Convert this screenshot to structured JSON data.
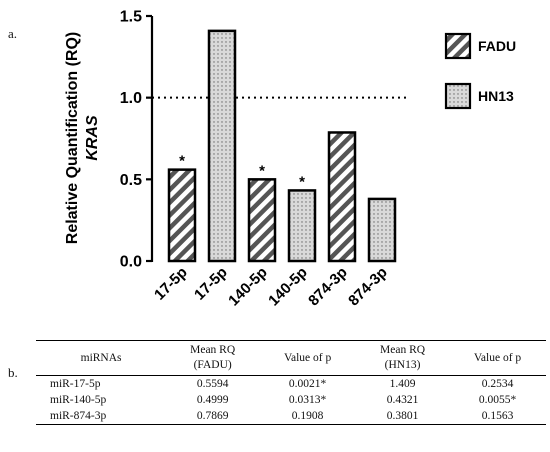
{
  "figure": {
    "panel_a_label": "a.",
    "panel_b_label": "b."
  },
  "chart_data": {
    "type": "bar",
    "ylabel_line1": "Relative Quantification (RQ)",
    "ylabel_line2": "KRAS",
    "ylim": [
      0,
      1.5
    ],
    "yticks": [
      "0.0",
      "0.5",
      "1.0",
      "1.5"
    ],
    "reference_line": 1.0,
    "categories": [
      "17-5p",
      "17-5p",
      "140-5p",
      "140-5p",
      "874-3p",
      "874-3p"
    ],
    "bars": [
      {
        "series": "FADU",
        "value": 0.5594,
        "significant": true
      },
      {
        "series": "HN13",
        "value": 1.409,
        "significant": false
      },
      {
        "series": "FADU",
        "value": 0.4999,
        "significant": true
      },
      {
        "series": "HN13",
        "value": 0.4321,
        "significant": true
      },
      {
        "series": "FADU",
        "value": 0.7869,
        "significant": false
      },
      {
        "series": "HN13",
        "value": 0.3801,
        "significant": false
      }
    ],
    "significance_marker": "*",
    "legend": [
      {
        "name": "FADU",
        "pattern": "diagonal-stripes",
        "color": "#555555"
      },
      {
        "name": "HN13",
        "pattern": "dots",
        "color": "#d9d9d9"
      }
    ],
    "legend_position": "right",
    "grid": false
  },
  "table": {
    "headers": [
      {
        "line1": "miRNAs",
        "line2": ""
      },
      {
        "line1": "Mean RQ",
        "line2": "(FADU)"
      },
      {
        "line1": "Value of p",
        "line2": ""
      },
      {
        "line1": "Mean RQ",
        "line2": "(HN13)"
      },
      {
        "line1": "Value of p",
        "line2": ""
      }
    ],
    "rows": [
      [
        "miR-17-5p",
        "0.5594",
        "0.0021*",
        "1.409",
        "0.2534"
      ],
      [
        "miR-140-5p",
        "0.4999",
        "0.0313*",
        "0.4321",
        "0.0055*"
      ],
      [
        "miR-874-3p",
        "0.7869",
        "0.1908",
        "0.3801",
        "0.1563"
      ]
    ]
  }
}
